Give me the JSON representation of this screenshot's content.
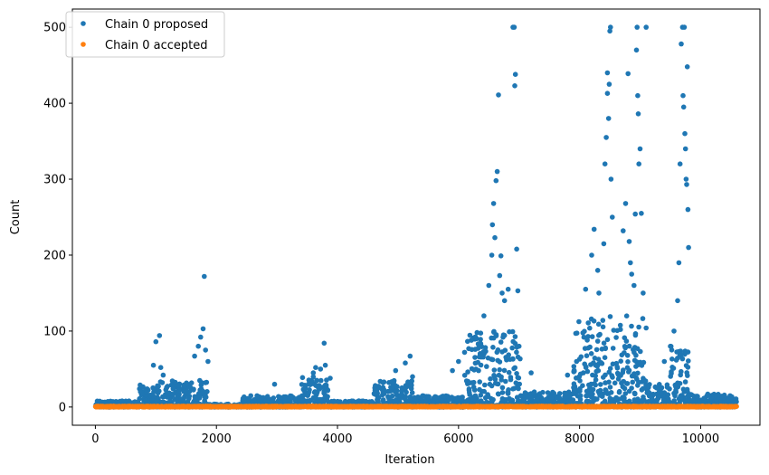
{
  "chart_data": {
    "type": "scatter",
    "xlabel": "Iteration",
    "ylabel": "Count",
    "xlim": [
      -380,
      10980
    ],
    "ylim": [
      -24,
      524
    ],
    "x_ticks": [
      0,
      2000,
      4000,
      6000,
      8000,
      10000
    ],
    "x_tick_labels": [
      "0",
      "2000",
      "4000",
      "6000",
      "8000",
      "10000"
    ],
    "y_ticks": [
      0,
      100,
      200,
      300,
      400,
      500
    ],
    "y_tick_labels": [
      "0",
      "100",
      "200",
      "300",
      "400",
      "500"
    ],
    "grid": false,
    "legend_position": "upper left",
    "series": [
      {
        "name": "Chain 0 proposed",
        "color": "#1f77b4",
        "marker": "point",
        "points": [
          [
            960,
            55
          ],
          [
            1000,
            86
          ],
          [
            1060,
            94
          ],
          [
            1080,
            52
          ],
          [
            1120,
            42
          ],
          [
            1640,
            67
          ],
          [
            1700,
            80
          ],
          [
            1740,
            92
          ],
          [
            1780,
            103
          ],
          [
            1800,
            172
          ],
          [
            1820,
            75
          ],
          [
            1860,
            60
          ],
          [
            2960,
            30
          ],
          [
            3600,
            45
          ],
          [
            3640,
            52
          ],
          [
            3720,
            50
          ],
          [
            3780,
            84
          ],
          [
            3800,
            55
          ],
          [
            3880,
            38
          ],
          [
            4960,
            48
          ],
          [
            5120,
            58
          ],
          [
            5200,
            67
          ],
          [
            5240,
            40
          ],
          [
            5900,
            48
          ],
          [
            6000,
            60
          ],
          [
            6100,
            72
          ],
          [
            6300,
            90
          ],
          [
            6420,
            120
          ],
          [
            6500,
            160
          ],
          [
            6550,
            200
          ],
          [
            6560,
            240
          ],
          [
            6580,
            268
          ],
          [
            6600,
            223
          ],
          [
            6620,
            298
          ],
          [
            6640,
            310
          ],
          [
            6660,
            411
          ],
          [
            6680,
            173
          ],
          [
            6700,
            199
          ],
          [
            6720,
            150
          ],
          [
            6760,
            140
          ],
          [
            6820,
            155
          ],
          [
            6900,
            500
          ],
          [
            6920,
            500
          ],
          [
            6930,
            423
          ],
          [
            6940,
            438
          ],
          [
            6960,
            208
          ],
          [
            6980,
            153
          ],
          [
            7000,
            80
          ],
          [
            7200,
            45
          ],
          [
            7800,
            42
          ],
          [
            7950,
            60
          ],
          [
            8100,
            155
          ],
          [
            8200,
            200
          ],
          [
            8240,
            234
          ],
          [
            8300,
            180
          ],
          [
            8320,
            150
          ],
          [
            8400,
            215
          ],
          [
            8420,
            320
          ],
          [
            8440,
            355
          ],
          [
            8460,
            413
          ],
          [
            8460,
            440
          ],
          [
            8480,
            380
          ],
          [
            8490,
            425
          ],
          [
            8500,
            495
          ],
          [
            8510,
            500
          ],
          [
            8520,
            300
          ],
          [
            8540,
            250
          ],
          [
            8720,
            232
          ],
          [
            8760,
            268
          ],
          [
            8800,
            439
          ],
          [
            8820,
            218
          ],
          [
            8840,
            190
          ],
          [
            8860,
            175
          ],
          [
            8900,
            160
          ],
          [
            8920,
            254
          ],
          [
            8940,
            470
          ],
          [
            8950,
            500
          ],
          [
            8960,
            410
          ],
          [
            8970,
            386
          ],
          [
            8980,
            320
          ],
          [
            9000,
            340
          ],
          [
            9020,
            255
          ],
          [
            9050,
            150
          ],
          [
            9100,
            500
          ],
          [
            9400,
            60
          ],
          [
            9500,
            80
          ],
          [
            9560,
            100
          ],
          [
            9620,
            140
          ],
          [
            9640,
            190
          ],
          [
            9660,
            320
          ],
          [
            9680,
            478
          ],
          [
            9700,
            500
          ],
          [
            9710,
            410
          ],
          [
            9720,
            395
          ],
          [
            9730,
            500
          ],
          [
            9740,
            360
          ],
          [
            9750,
            340
          ],
          [
            9760,
            300
          ],
          [
            9770,
            293
          ],
          [
            9780,
            448
          ],
          [
            9790,
            260
          ],
          [
            9800,
            210
          ]
        ],
        "dense_bands": [
          {
            "x": [
              0,
              700
            ],
            "y": [
              0,
              8
            ]
          },
          {
            "x": [
              700,
              1850
            ],
            "y": [
              0,
              35
            ]
          },
          {
            "x": [
              1850,
              2400
            ],
            "y": [
              0,
              4
            ]
          },
          {
            "x": [
              2400,
              3400
            ],
            "y": [
              0,
              15
            ]
          },
          {
            "x": [
              3400,
              3850
            ],
            "y": [
              0,
              40
            ]
          },
          {
            "x": [
              3850,
              4600
            ],
            "y": [
              0,
              8
            ]
          },
          {
            "x": [
              4600,
              5250
            ],
            "y": [
              0,
              35
            ]
          },
          {
            "x": [
              5250,
              6100
            ],
            "y": [
              0,
              15
            ]
          },
          {
            "x": [
              6100,
              7020
            ],
            "y": [
              0,
              100
            ]
          },
          {
            "x": [
              7020,
              7900
            ],
            "y": [
              0,
              20
            ]
          },
          {
            "x": [
              7900,
              9100
            ],
            "y": [
              0,
              120
            ]
          },
          {
            "x": [
              9100,
              9500
            ],
            "y": [
              0,
              30
            ]
          },
          {
            "x": [
              9500,
              9800
            ],
            "y": [
              0,
              80
            ]
          },
          {
            "x": [
              9800,
              10600
            ],
            "y": [
              0,
              17
            ]
          }
        ]
      },
      {
        "name": "Chain 0 accepted",
        "color": "#ff7f0e",
        "marker": "point",
        "dense_bands": [
          {
            "x": [
              0,
              10600
            ],
            "y": [
              0,
              1
            ]
          }
        ]
      }
    ]
  }
}
